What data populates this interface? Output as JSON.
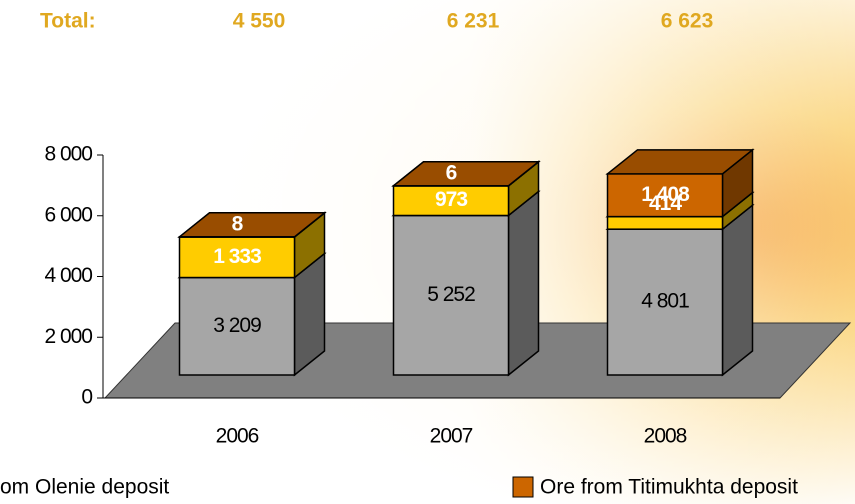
{
  "chart_data": {
    "type": "bar3d_stacked",
    "total_label": "Total:",
    "totals": [
      4550,
      6231,
      6623
    ],
    "totals_labels": [
      "4 550",
      "6 231",
      "6 623"
    ],
    "categories": [
      "2006",
      "2007",
      "2008"
    ],
    "series": [
      {
        "name": "om Olenie deposit",
        "color": "#a6a6a6",
        "values": [
          3209,
          5252,
          4801
        ],
        "value_labels": [
          "3 209",
          "5 252",
          "4 801"
        ]
      },
      {
        "color": "#ffcc00",
        "values": [
          1333,
          973,
          414
        ],
        "value_labels": [
          "1 333",
          "973",
          "414"
        ]
      },
      {
        "name": "Ore from Titimukhta deposit",
        "color": "#cc6600",
        "values": [
          8,
          6,
          1408
        ],
        "value_labels": [
          "8",
          "6",
          "1 408"
        ]
      }
    ],
    "ylim": [
      0,
      8000
    ],
    "yticks": [
      0,
      {
        "value": 2000,
        "label": "2 000"
      },
      {
        "value": 4000,
        "label": "4 000"
      },
      {
        "value": 6000,
        "label": "6 000"
      },
      {
        "value": 8000,
        "label": "8 000"
      }
    ]
  }
}
